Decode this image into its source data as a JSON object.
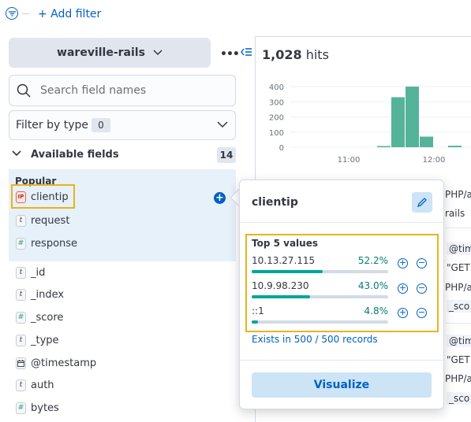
{
  "filter_bar": {
    "add_filter_label": "+ Add filter"
  },
  "index_pattern": {
    "name": "wareville-rails",
    "options_icon": "ellipsis-icon"
  },
  "search": {
    "placeholder": "Search field names"
  },
  "filter_by_type": {
    "label": "Filter by type",
    "count": "0"
  },
  "available_fields": {
    "label": "Available fields",
    "count": "14",
    "popular_label": "Popular",
    "popular": [
      {
        "type": "ip",
        "type_glyph": "IP",
        "name": "clientip"
      },
      {
        "type": "string",
        "type_glyph": "t",
        "name": "request"
      },
      {
        "type": "number",
        "type_glyph": "#",
        "name": "response"
      }
    ],
    "fields": [
      {
        "type": "string",
        "type_glyph": "t",
        "name": "_id"
      },
      {
        "type": "string",
        "type_glyph": "t",
        "name": "_index"
      },
      {
        "type": "number",
        "type_glyph": "#",
        "name": "_score"
      },
      {
        "type": "string",
        "type_glyph": "t",
        "name": "_type"
      },
      {
        "type": "date",
        "type_glyph": "date",
        "name": "@timestamp"
      },
      {
        "type": "string",
        "type_glyph": "t",
        "name": "auth"
      },
      {
        "type": "number",
        "type_glyph": "#",
        "name": "bytes"
      }
    ]
  },
  "hits": {
    "count": "1,028",
    "label": "hits"
  },
  "chart_data": {
    "type": "bar",
    "yticks": [
      "400",
      "300",
      "200",
      "100",
      "0"
    ],
    "xticks": [
      "11:00",
      "12:00"
    ],
    "ylim": [
      0,
      400
    ],
    "values": [
      8,
      330,
      400,
      70,
      10
    ],
    "color": "#54b399"
  },
  "doc_snippets": {
    "row1_a": "PHP/a",
    "row1_b": "rails",
    "row2_a": "@tim",
    "row2_b": "\"GET",
    "row2_c": "PHP/a",
    "row2_d": "_sco",
    "row3_a": "@tim",
    "row3_b": "\"GET",
    "row3_c": "PHP/a",
    "row3_d": "_sco"
  },
  "popover": {
    "title": "clientip",
    "top_values_title": "Top 5 values",
    "values": [
      {
        "name": "10.13.27.115",
        "percent": "52.2%",
        "fraction": 0.522
      },
      {
        "name": "10.9.98.230",
        "percent": "43.0%",
        "fraction": 0.43
      },
      {
        "name": "::1",
        "percent": "4.8%",
        "fraction": 0.048
      }
    ],
    "exists_text": "Exists in 500 / 500 records",
    "visualize_label": "Visualize"
  }
}
